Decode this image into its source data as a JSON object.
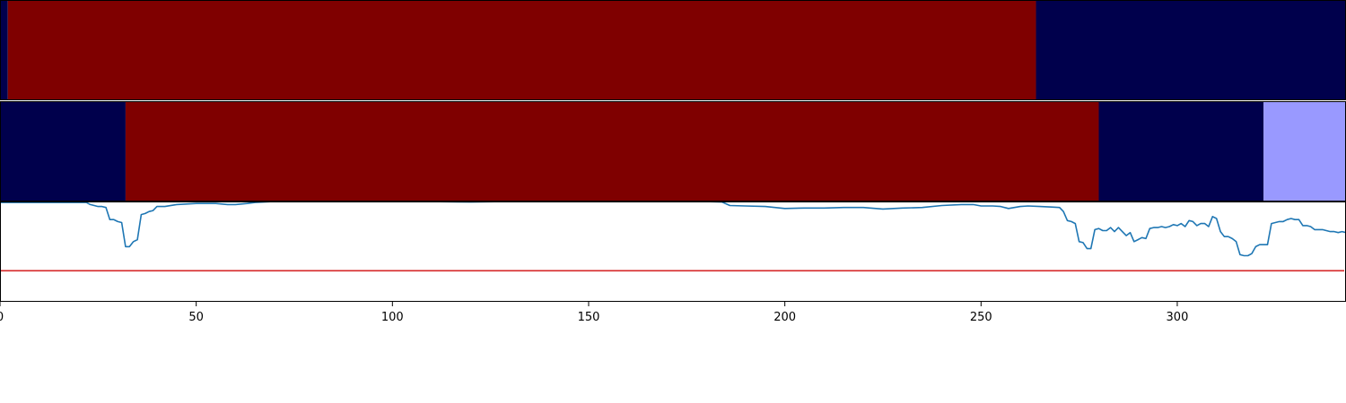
{
  "chart_data": [
    {
      "type": "area",
      "panel": "top-state-band",
      "xlim": [
        0,
        343
      ],
      "segments": [
        {
          "x0": 0,
          "x1": 2,
          "color": "#00004c"
        },
        {
          "x0": 2,
          "x1": 264,
          "color": "#7f0000"
        },
        {
          "x0": 264,
          "x1": 343,
          "color": "#00004c"
        }
      ]
    },
    {
      "type": "area",
      "panel": "middle-state-band",
      "xlim": [
        0,
        343
      ],
      "segments": [
        {
          "x0": 0,
          "x1": 32,
          "color": "#00004c"
        },
        {
          "x0": 32,
          "x1": 280,
          "color": "#7f0000"
        },
        {
          "x0": 280,
          "x1": 322,
          "color": "#00004c"
        },
        {
          "x0": 322,
          "x1": 343,
          "color": "#9999ff"
        }
      ]
    },
    {
      "type": "line",
      "panel": "bottom-signal",
      "xlim": [
        0,
        343
      ],
      "ylim": [
        0,
        1
      ],
      "xticks": [
        0,
        50,
        100,
        150,
        200,
        250,
        300
      ],
      "threshold": {
        "y": 0.31,
        "color": "#d62728"
      },
      "series": [
        {
          "color": "#1f77b4",
          "x": [
            0,
            5,
            10,
            15,
            20,
            22,
            23,
            24,
            25,
            26,
            27,
            28,
            29,
            30,
            31,
            32,
            33,
            34,
            35,
            36,
            37,
            38,
            39,
            40,
            42,
            45,
            50,
            55,
            58,
            60,
            63,
            65,
            70,
            80,
            90,
            100,
            110,
            120,
            130,
            140,
            150,
            160,
            170,
            180,
            184,
            186,
            190,
            195,
            200,
            205,
            210,
            215,
            220,
            225,
            230,
            235,
            240,
            245,
            248,
            250,
            253,
            255,
            257,
            260,
            262,
            265,
            268,
            270,
            271,
            272,
            273,
            274,
            275,
            276,
            277,
            278,
            279,
            280,
            281,
            282,
            283,
            284,
            285,
            286,
            287,
            288,
            289,
            290,
            291,
            292,
            293,
            294,
            295,
            296,
            297,
            298,
            299,
            300,
            301,
            302,
            303,
            304,
            305,
            306,
            307,
            308,
            309,
            310,
            311,
            312,
            313,
            314,
            315,
            316,
            317,
            318,
            319,
            320,
            321,
            322,
            323,
            324,
            325,
            326,
            327,
            328,
            329,
            330,
            331,
            332,
            333,
            334,
            335,
            336,
            337,
            338,
            339,
            340,
            341,
            342,
            343
          ],
          "y": [
            0.99,
            0.99,
            0.99,
            0.99,
            0.99,
            0.99,
            0.97,
            0.96,
            0.95,
            0.95,
            0.94,
            0.82,
            0.82,
            0.8,
            0.79,
            0.55,
            0.55,
            0.6,
            0.62,
            0.87,
            0.88,
            0.9,
            0.91,
            0.95,
            0.95,
            0.97,
            0.98,
            0.98,
            0.97,
            0.97,
            0.98,
            0.99,
            1.0,
            1.0,
            1.0,
            1.0,
            0.999,
            0.995,
            1.0,
            1.0,
            1.0,
            0.999,
            0.999,
            0.999,
            0.995,
            0.96,
            0.955,
            0.95,
            0.93,
            0.935,
            0.935,
            0.94,
            0.94,
            0.925,
            0.935,
            0.94,
            0.96,
            0.97,
            0.97,
            0.955,
            0.955,
            0.95,
            0.93,
            0.95,
            0.955,
            0.95,
            0.945,
            0.94,
            0.9,
            0.81,
            0.8,
            0.78,
            0.6,
            0.59,
            0.53,
            0.53,
            0.72,
            0.73,
            0.71,
            0.71,
            0.74,
            0.7,
            0.74,
            0.7,
            0.66,
            0.69,
            0.6,
            0.62,
            0.64,
            0.63,
            0.73,
            0.74,
            0.74,
            0.75,
            0.74,
            0.75,
            0.77,
            0.76,
            0.78,
            0.75,
            0.81,
            0.8,
            0.76,
            0.78,
            0.78,
            0.75,
            0.85,
            0.83,
            0.7,
            0.65,
            0.65,
            0.63,
            0.6,
            0.47,
            0.46,
            0.46,
            0.48,
            0.55,
            0.57,
            0.57,
            0.57,
            0.78,
            0.79,
            0.8,
            0.8,
            0.82,
            0.83,
            0.82,
            0.82,
            0.76,
            0.76,
            0.75,
            0.72,
            0.72,
            0.72,
            0.71,
            0.7,
            0.7,
            0.69,
            0.7,
            0.69
          ]
        }
      ]
    }
  ]
}
